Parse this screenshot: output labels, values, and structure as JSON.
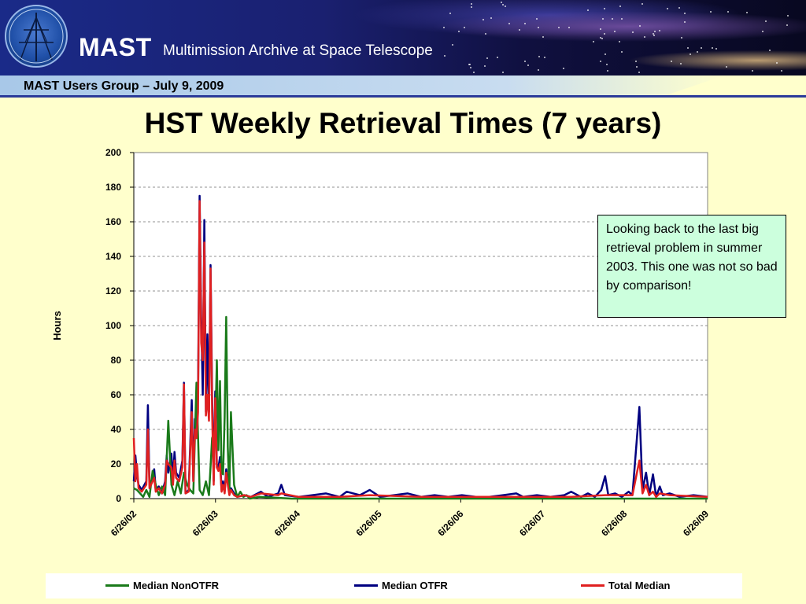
{
  "header": {
    "app_title": "MAST",
    "app_subtitle": "Multimission Archive at Space Telescope",
    "subbar": "MAST Users Group – July 9, 2009",
    "logo_icon": "telescope-globe-icon"
  },
  "slide": {
    "title": "HST Weekly Retrieval Times (7 years)",
    "note": "Looking back to the last big retrieval problem in summer 2003.  This one was not so bad by comparison!"
  },
  "colors": {
    "background": "#ffffcc",
    "nonotfr": "#1a7a1a",
    "otfr": "#000080",
    "total": "#e02020",
    "note_bg": "#ccffdd"
  },
  "chart_data": {
    "type": "line",
    "ylabel": "Hours",
    "xlabel": "",
    "ylim": [
      0,
      200
    ],
    "yticks": [
      0,
      20,
      40,
      60,
      80,
      100,
      120,
      140,
      160,
      180,
      200
    ],
    "xticks": [
      "6/26/02",
      "6/26/03",
      "6/26/04",
      "6/26/05",
      "6/26/06",
      "6/26/07",
      "6/26/08",
      "6/26/09"
    ],
    "grid": "horizontal dashed",
    "legend": "bottom",
    "x_range": [
      "2002-06-26",
      "2009-07-03"
    ],
    "series": [
      {
        "name": "Median NonOTFR",
        "color": "#1a7a1a",
        "points": [
          [
            "2002-06-26",
            6
          ],
          [
            "2002-07-10",
            5
          ],
          [
            "2002-07-24",
            3
          ],
          [
            "2002-08-07",
            1
          ],
          [
            "2002-08-21",
            5
          ],
          [
            "2002-09-04",
            1
          ],
          [
            "2002-09-18",
            16
          ],
          [
            "2002-10-02",
            8
          ],
          [
            "2002-10-16",
            2
          ],
          [
            "2002-10-30",
            7
          ],
          [
            "2002-11-13",
            2
          ],
          [
            "2002-11-27",
            45
          ],
          [
            "2002-12-11",
            8
          ],
          [
            "2002-12-25",
            2
          ],
          [
            "2003-01-08",
            10
          ],
          [
            "2003-01-22",
            3
          ],
          [
            "2003-02-05",
            15
          ],
          [
            "2003-02-19",
            8
          ],
          [
            "2003-03-05",
            5
          ],
          [
            "2003-03-19",
            3
          ],
          [
            "2003-04-02",
            67
          ],
          [
            "2003-04-16",
            5
          ],
          [
            "2003-04-30",
            2
          ],
          [
            "2003-05-14",
            10
          ],
          [
            "2003-05-28",
            2
          ],
          [
            "2003-06-11",
            35
          ],
          [
            "2003-06-25",
            40
          ],
          [
            "2003-07-02",
            80
          ],
          [
            "2003-07-09",
            28
          ],
          [
            "2003-07-16",
            68
          ],
          [
            "2003-07-23",
            15
          ],
          [
            "2003-07-30",
            14
          ],
          [
            "2003-08-06",
            47
          ],
          [
            "2003-08-13",
            105
          ],
          [
            "2003-08-20",
            30
          ],
          [
            "2003-08-27",
            3
          ],
          [
            "2003-09-03",
            50
          ],
          [
            "2003-09-17",
            8
          ],
          [
            "2003-10-01",
            1
          ],
          [
            "2003-10-15",
            4
          ],
          [
            "2003-10-29",
            1
          ],
          [
            "2003-11-12",
            2
          ],
          [
            "2003-11-26",
            0
          ],
          [
            "2004-01-07",
            1
          ],
          [
            "2004-06-01",
            0
          ],
          [
            "2005-01-01",
            0
          ],
          [
            "2006-01-01",
            0
          ],
          [
            "2007-01-01",
            0
          ],
          [
            "2008-01-01",
            0
          ],
          [
            "2009-01-01",
            0
          ],
          [
            "2009-07-03",
            0
          ]
        ]
      },
      {
        "name": "Median OTFR",
        "color": "#000080",
        "points": [
          [
            "2002-06-26",
            10
          ],
          [
            "2002-07-03",
            25
          ],
          [
            "2002-07-10",
            14
          ],
          [
            "2002-07-17",
            8
          ],
          [
            "2002-07-31",
            5
          ],
          [
            "2002-08-21",
            10
          ],
          [
            "2002-08-28",
            54
          ],
          [
            "2002-09-04",
            8
          ],
          [
            "2002-09-18",
            12
          ],
          [
            "2002-09-25",
            17
          ],
          [
            "2002-10-02",
            5
          ],
          [
            "2002-10-16",
            7
          ],
          [
            "2002-10-30",
            3
          ],
          [
            "2002-11-13",
            10
          ],
          [
            "2002-11-20",
            25
          ],
          [
            "2002-11-27",
            15
          ],
          [
            "2002-12-11",
            26
          ],
          [
            "2002-12-18",
            10
          ],
          [
            "2002-12-25",
            27
          ],
          [
            "2003-01-01",
            15
          ],
          [
            "2003-01-15",
            12
          ],
          [
            "2003-01-29",
            22
          ],
          [
            "2003-02-05",
            67
          ],
          [
            "2003-02-12",
            3
          ],
          [
            "2003-02-26",
            5
          ],
          [
            "2003-03-12",
            57
          ],
          [
            "2003-03-19",
            10
          ],
          [
            "2003-03-26",
            46
          ],
          [
            "2003-04-02",
            35
          ],
          [
            "2003-04-09",
            60
          ],
          [
            "2003-04-16",
            175
          ],
          [
            "2003-04-23",
            105
          ],
          [
            "2003-04-30",
            60
          ],
          [
            "2003-05-07",
            161
          ],
          [
            "2003-05-14",
            50
          ],
          [
            "2003-05-21",
            95
          ],
          [
            "2003-05-28",
            50
          ],
          [
            "2003-06-04",
            135
          ],
          [
            "2003-06-11",
            60
          ],
          [
            "2003-06-18",
            10
          ],
          [
            "2003-06-25",
            62
          ],
          [
            "2003-07-02",
            20
          ],
          [
            "2003-07-09",
            18
          ],
          [
            "2003-07-16",
            24
          ],
          [
            "2003-07-23",
            5
          ],
          [
            "2003-07-30",
            10
          ],
          [
            "2003-08-06",
            4
          ],
          [
            "2003-08-13",
            17
          ],
          [
            "2003-08-20",
            10
          ],
          [
            "2003-08-27",
            3
          ],
          [
            "2003-09-03",
            6
          ],
          [
            "2003-09-17",
            3
          ],
          [
            "2003-10-01",
            1
          ],
          [
            "2003-11-01",
            2
          ],
          [
            "2003-12-01",
            1
          ],
          [
            "2004-01-15",
            4
          ],
          [
            "2004-02-15",
            1
          ],
          [
            "2004-04-01",
            3
          ],
          [
            "2004-04-15",
            8
          ],
          [
            "2004-05-01",
            2
          ],
          [
            "2004-07-01",
            1
          ],
          [
            "2004-09-01",
            2
          ],
          [
            "2004-11-01",
            3
          ],
          [
            "2005-01-01",
            1
          ],
          [
            "2005-02-01",
            4
          ],
          [
            "2005-04-01",
            2
          ],
          [
            "2005-05-15",
            5
          ],
          [
            "2005-07-01",
            1
          ],
          [
            "2005-09-01",
            2
          ],
          [
            "2005-11-01",
            3
          ],
          [
            "2006-01-01",
            1
          ],
          [
            "2006-03-01",
            2
          ],
          [
            "2006-05-01",
            1
          ],
          [
            "2006-07-01",
            2
          ],
          [
            "2006-09-01",
            1
          ],
          [
            "2006-11-01",
            1
          ],
          [
            "2007-01-01",
            2
          ],
          [
            "2007-03-01",
            3
          ],
          [
            "2007-04-01",
            1
          ],
          [
            "2007-06-01",
            2
          ],
          [
            "2007-08-01",
            1
          ],
          [
            "2007-10-01",
            2
          ],
          [
            "2007-11-01",
            4
          ],
          [
            "2007-12-15",
            1
          ],
          [
            "2008-01-15",
            3
          ],
          [
            "2008-02-15",
            1
          ],
          [
            "2008-03-15",
            5
          ],
          [
            "2008-04-01",
            13
          ],
          [
            "2008-04-15",
            2
          ],
          [
            "2008-05-15",
            3
          ],
          [
            "2008-06-15",
            1
          ],
          [
            "2008-07-15",
            4
          ],
          [
            "2008-08-01",
            2
          ],
          [
            "2008-09-01",
            53
          ],
          [
            "2008-09-15",
            5
          ],
          [
            "2008-10-01",
            15
          ],
          [
            "2008-10-15",
            2
          ],
          [
            "2008-11-01",
            14
          ],
          [
            "2008-11-15",
            1
          ],
          [
            "2008-12-01",
            7
          ],
          [
            "2008-12-15",
            2
          ],
          [
            "2009-01-15",
            3
          ],
          [
            "2009-03-01",
            1
          ],
          [
            "2009-05-01",
            2
          ],
          [
            "2009-07-03",
            1
          ]
        ]
      },
      {
        "name": "Total Median",
        "color": "#e02020",
        "points": [
          [
            "2002-06-26",
            35
          ],
          [
            "2002-07-03",
            10
          ],
          [
            "2002-07-10",
            20
          ],
          [
            "2002-07-17",
            6
          ],
          [
            "2002-07-31",
            4
          ],
          [
            "2002-08-21",
            8
          ],
          [
            "2002-08-28",
            40
          ],
          [
            "2002-09-04",
            6
          ],
          [
            "2002-09-18",
            10
          ],
          [
            "2002-09-25",
            12
          ],
          [
            "2002-10-02",
            4
          ],
          [
            "2002-10-16",
            6
          ],
          [
            "2002-10-30",
            3
          ],
          [
            "2002-11-13",
            8
          ],
          [
            "2002-11-20",
            22
          ],
          [
            "2002-11-27",
            20
          ],
          [
            "2002-12-11",
            18
          ],
          [
            "2002-12-18",
            8
          ],
          [
            "2002-12-25",
            22
          ],
          [
            "2003-01-01",
            12
          ],
          [
            "2003-01-15",
            10
          ],
          [
            "2003-01-29",
            18
          ],
          [
            "2003-02-05",
            66
          ],
          [
            "2003-02-12",
            3
          ],
          [
            "2003-02-26",
            4
          ],
          [
            "2003-03-12",
            50
          ],
          [
            "2003-03-19",
            10
          ],
          [
            "2003-03-26",
            40
          ],
          [
            "2003-04-02",
            35
          ],
          [
            "2003-04-09",
            50
          ],
          [
            "2003-04-16",
            172
          ],
          [
            "2003-04-23",
            90
          ],
          [
            "2003-04-30",
            80
          ],
          [
            "2003-05-07",
            148
          ],
          [
            "2003-05-14",
            48
          ],
          [
            "2003-05-21",
            60
          ],
          [
            "2003-05-28",
            45
          ],
          [
            "2003-06-04",
            133
          ],
          [
            "2003-06-11",
            50
          ],
          [
            "2003-06-18",
            8
          ],
          [
            "2003-06-25",
            58
          ],
          [
            "2003-07-02",
            18
          ],
          [
            "2003-07-09",
            16
          ],
          [
            "2003-07-16",
            20
          ],
          [
            "2003-07-23",
            4
          ],
          [
            "2003-07-30",
            8
          ],
          [
            "2003-08-06",
            3
          ],
          [
            "2003-08-13",
            15
          ],
          [
            "2003-08-20",
            8
          ],
          [
            "2003-08-27",
            2
          ],
          [
            "2003-09-03",
            5
          ],
          [
            "2003-09-17",
            2
          ],
          [
            "2003-10-01",
            1
          ],
          [
            "2003-11-01",
            2
          ],
          [
            "2003-12-01",
            1
          ],
          [
            "2004-01-15",
            3
          ],
          [
            "2004-04-01",
            2
          ],
          [
            "2004-04-15",
            3
          ],
          [
            "2004-07-01",
            1
          ],
          [
            "2005-01-01",
            1
          ],
          [
            "2005-05-15",
            2
          ],
          [
            "2006-01-01",
            1
          ],
          [
            "2007-01-01",
            1
          ],
          [
            "2007-11-01",
            1
          ],
          [
            "2008-04-01",
            2
          ],
          [
            "2008-08-01",
            2
          ],
          [
            "2008-09-01",
            22
          ],
          [
            "2008-09-15",
            3
          ],
          [
            "2008-10-01",
            8
          ],
          [
            "2008-10-15",
            2
          ],
          [
            "2008-11-01",
            4
          ],
          [
            "2008-11-15",
            1
          ],
          [
            "2008-12-01",
            3
          ],
          [
            "2009-01-15",
            2
          ],
          [
            "2009-07-03",
            1
          ]
        ]
      }
    ]
  }
}
